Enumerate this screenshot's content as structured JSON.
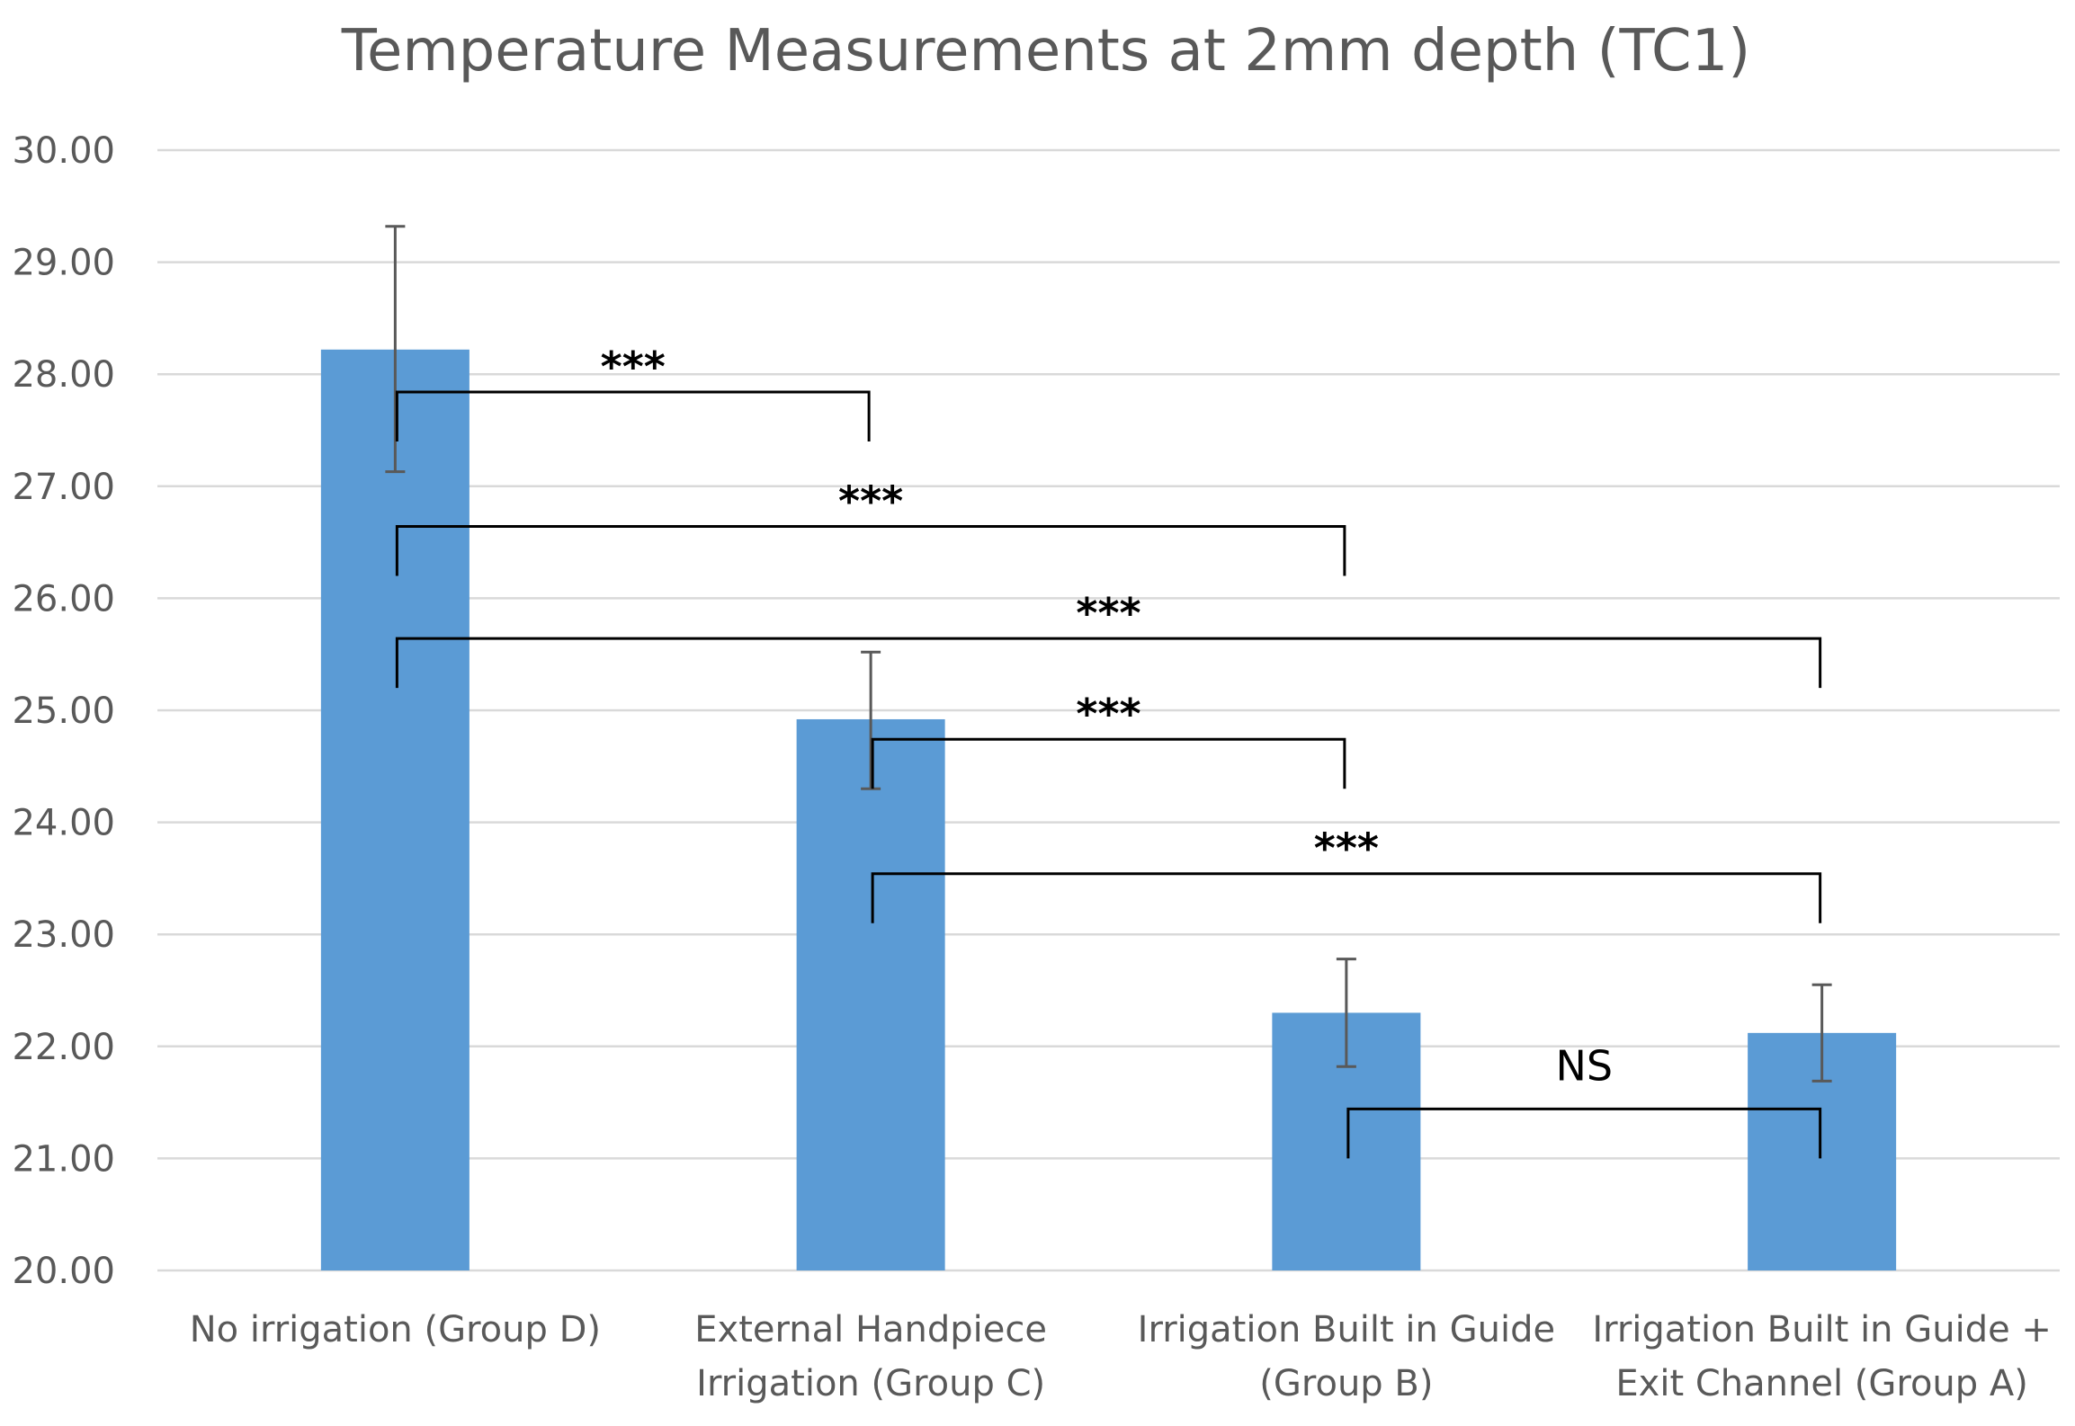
{
  "chart_data": {
    "type": "bar",
    "title": "Temperature Measurements at 2mm depth (TC1)",
    "xlabel": "",
    "ylabel": "",
    "ylim": [
      20,
      30
    ],
    "ytick_step": 1,
    "ytick_decimals": 2,
    "grid": true,
    "categories": [
      [
        "No irrigation (Group D)"
      ],
      [
        "External Handpiece",
        "Irrigation (Group C)"
      ],
      [
        "Irrigation Built in Guide",
        "(Group B)"
      ],
      [
        "Irrigation Built in Guide +",
        "Exit Channel (Group A)"
      ]
    ],
    "values": [
      28.22,
      24.92,
      22.3,
      22.12
    ],
    "error_low": [
      27.13,
      24.3,
      21.82,
      21.69
    ],
    "error_high": [
      29.32,
      25.52,
      22.78,
      22.55
    ],
    "bar_color": "#5b9bd5",
    "comparisons": [
      {
        "from": 0,
        "to": 1,
        "label": "***",
        "y": 27.4
      },
      {
        "from": 0,
        "to": 2,
        "label": "***",
        "y": 26.2
      },
      {
        "from": 0,
        "to": 3,
        "label": "***",
        "y": 25.2
      },
      {
        "from": 1,
        "to": 2,
        "label": "***",
        "y": 24.3
      },
      {
        "from": 1,
        "to": 3,
        "label": "***",
        "y": 23.1
      },
      {
        "from": 2,
        "to": 3,
        "label": "NS",
        "y": 21.0
      }
    ]
  }
}
